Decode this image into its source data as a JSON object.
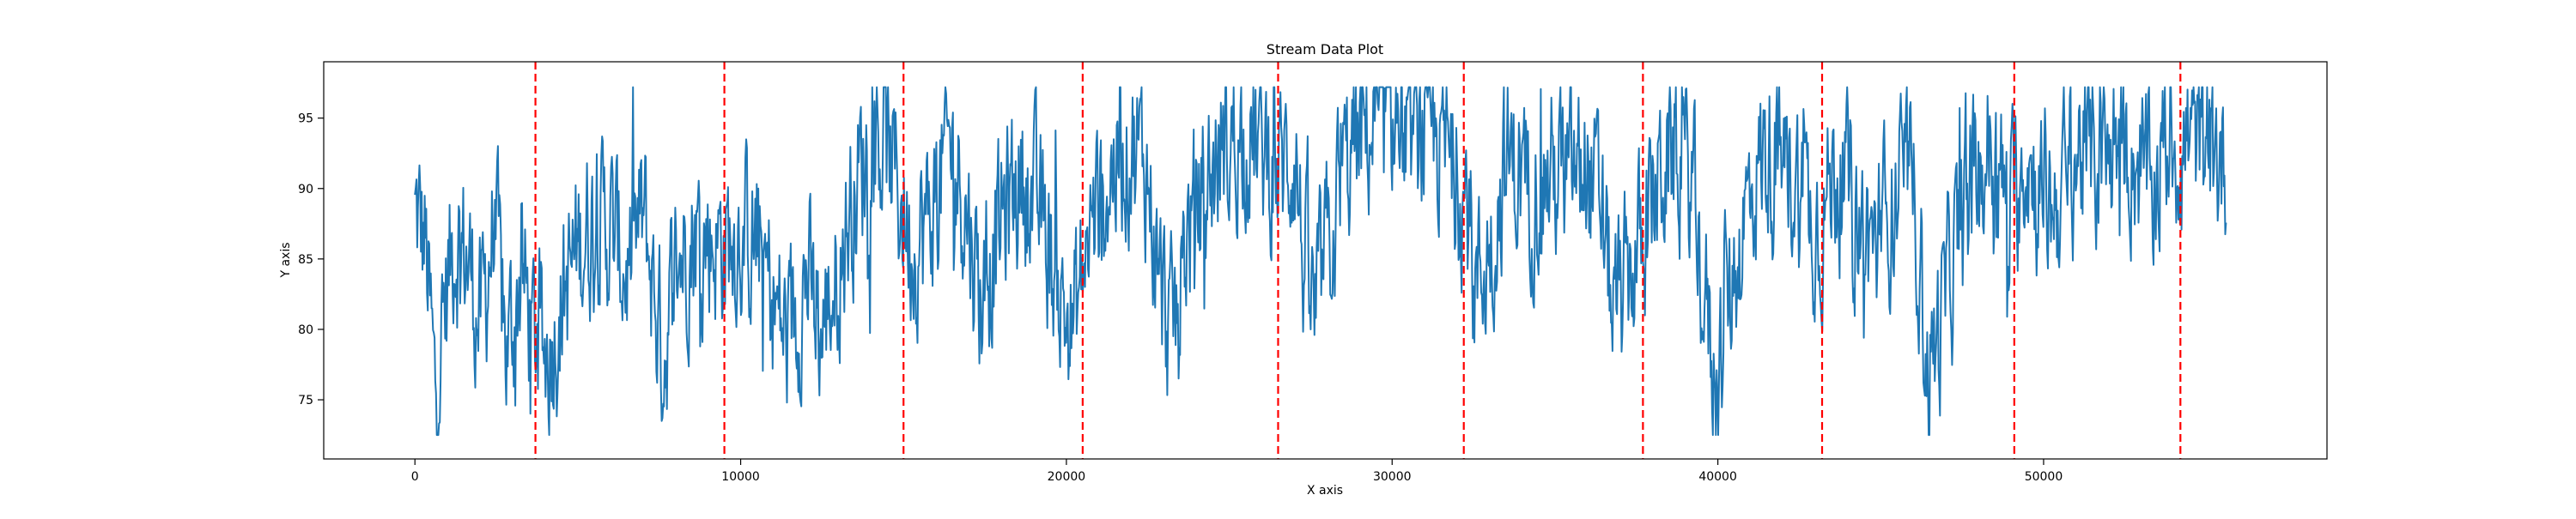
{
  "chart_data": {
    "type": "line",
    "title": "Stream Data Plot",
    "xlabel": "X axis",
    "ylabel": "Y axis",
    "xlim": [
      -2800,
      58700
    ],
    "ylim": [
      70.8,
      99.0
    ],
    "x_ticks": [
      0,
      10000,
      20000,
      30000,
      40000,
      50000
    ],
    "y_ticks": [
      75,
      80,
      85,
      90,
      95
    ],
    "grid": false,
    "legend": "none",
    "colors": {
      "series": "#1f77b4",
      "markers": "#ff0000"
    },
    "series": [
      {
        "x_start": 0,
        "x_end": 55600,
        "anchors": [
          [
            0,
            88
          ],
          [
            300,
            86
          ],
          [
            600,
            75
          ],
          [
            800,
            80
          ],
          [
            1200,
            87
          ],
          [
            1600,
            85
          ],
          [
            2000,
            80
          ],
          [
            2400,
            88
          ],
          [
            2800,
            78
          ],
          [
            3200,
            84
          ],
          [
            3700,
            79
          ],
          [
            4000,
            78
          ],
          [
            4500,
            82
          ],
          [
            5000,
            86
          ],
          [
            5500,
            88
          ],
          [
            6000,
            87
          ],
          [
            6500,
            84
          ],
          [
            7000,
            88
          ],
          [
            7600,
            78
          ],
          [
            8000,
            85
          ],
          [
            8600,
            87
          ],
          [
            9500,
            86
          ],
          [
            10000,
            87
          ],
          [
            10500,
            86
          ],
          [
            11000,
            82
          ],
          [
            11400,
            79
          ],
          [
            12000,
            84
          ],
          [
            12400,
            79
          ],
          [
            12800,
            83
          ],
          [
            13400,
            89
          ],
          [
            14000,
            94
          ],
          [
            14500,
            93
          ],
          [
            15000,
            88
          ],
          [
            15300,
            86
          ],
          [
            15800,
            88
          ],
          [
            16400,
            93
          ],
          [
            16800,
            90
          ],
          [
            17400,
            82
          ],
          [
            18000,
            88
          ],
          [
            18600,
            91
          ],
          [
            19200,
            88
          ],
          [
            19800,
            82
          ],
          [
            20200,
            80
          ],
          [
            20600,
            86
          ],
          [
            21000,
            89
          ],
          [
            21500,
            92
          ],
          [
            22000,
            93
          ],
          [
            22400,
            92
          ],
          [
            22800,
            84
          ],
          [
            23200,
            79
          ],
          [
            23600,
            86
          ],
          [
            24200,
            90
          ],
          [
            24800,
            93
          ],
          [
            25400,
            94
          ],
          [
            26000,
            93
          ],
          [
            26500,
            91
          ],
          [
            27000,
            93
          ],
          [
            27200,
            86
          ],
          [
            27600,
            80
          ],
          [
            28000,
            86
          ],
          [
            28500,
            91
          ],
          [
            29000,
            94
          ],
          [
            29500,
            94.5
          ],
          [
            30000,
            95
          ],
          [
            30600,
            94
          ],
          [
            31200,
            94
          ],
          [
            31800,
            92
          ],
          [
            32300,
            89
          ],
          [
            32500,
            83
          ],
          [
            33000,
            86
          ],
          [
            33500,
            92
          ],
          [
            34200,
            90
          ],
          [
            34800,
            91
          ],
          [
            35400,
            91
          ],
          [
            36000,
            91
          ],
          [
            36400,
            88
          ],
          [
            36800,
            81
          ],
          [
            37300,
            84
          ],
          [
            37700,
            87
          ],
          [
            38200,
            91
          ],
          [
            38700,
            93
          ],
          [
            39200,
            90
          ],
          [
            39600,
            82
          ],
          [
            39900,
            76
          ],
          [
            40300,
            82
          ],
          [
            40800,
            88
          ],
          [
            41300,
            92
          ],
          [
            41800,
            92
          ],
          [
            42300,
            91
          ],
          [
            42800,
            88
          ],
          [
            43200,
            88
          ],
          [
            43600,
            92
          ],
          [
            44000,
            90
          ],
          [
            44400,
            87
          ],
          [
            44800,
            86
          ],
          [
            45300,
            89
          ],
          [
            45800,
            91
          ],
          [
            46100,
            88
          ],
          [
            46400,
            77
          ],
          [
            46700,
            79
          ],
          [
            47200,
            85
          ],
          [
            47700,
            89
          ],
          [
            48300,
            93
          ],
          [
            49000,
            88
          ],
          [
            49400,
            93
          ],
          [
            49800,
            90
          ],
          [
            50300,
            89
          ],
          [
            50800,
            92
          ],
          [
            51300,
            93
          ],
          [
            51800,
            92
          ],
          [
            52300,
            93
          ],
          [
            52800,
            92
          ],
          [
            53300,
            90
          ],
          [
            53800,
            94
          ],
          [
            54200,
            93
          ],
          [
            54700,
            94
          ],
          [
            55200,
            92
          ],
          [
            55600,
            92
          ]
        ]
      }
    ],
    "vertical_markers": [
      3700,
      9500,
      15000,
      20500,
      26500,
      32200,
      37700,
      43200,
      49100,
      54200
    ]
  }
}
